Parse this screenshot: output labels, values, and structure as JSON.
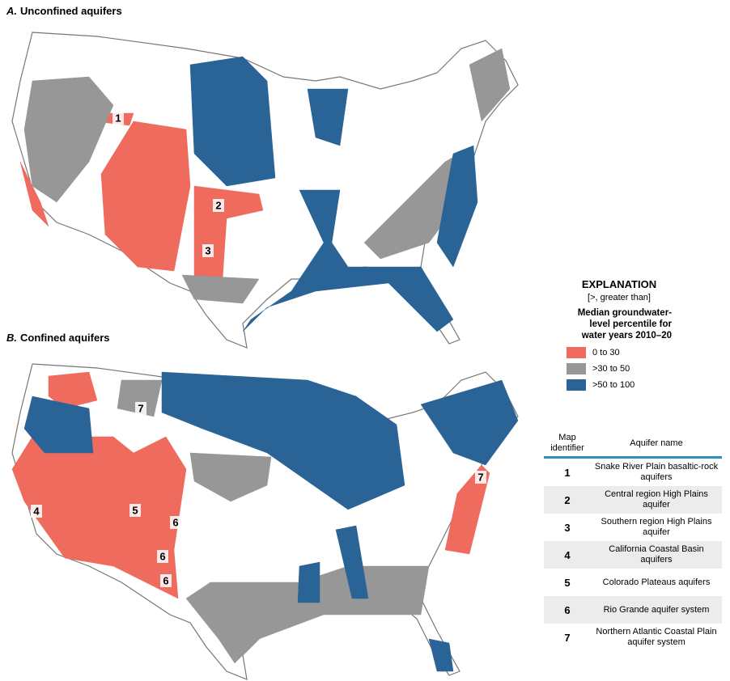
{
  "panels": [
    {
      "letter": "A.",
      "title": "Unconfined aquifers",
      "labels": [
        "1",
        "2",
        "3"
      ]
    },
    {
      "letter": "B.",
      "title": "Confined aquifers",
      "labels": [
        "4",
        "5",
        "6",
        "6",
        "6",
        "7",
        "7"
      ]
    }
  ],
  "explanation": {
    "title": "EXPLANATION",
    "note": "[>, greater than]",
    "heading": "Median groundwater-level percentile for water years 2010–20",
    "items": [
      {
        "label": "0 to 30",
        "color": "#ef6b5e"
      },
      {
        "label": ">30 to 50",
        "color": "#979797"
      },
      {
        "label": ">50 to 100",
        "color": "#2a6496"
      }
    ]
  },
  "table": {
    "columns": [
      "Map identifier",
      "Aquifer name"
    ],
    "rows": [
      [
        "1",
        "Snake River Plain basaltic-rock aquifers"
      ],
      [
        "2",
        "Central region High Plains aquifer"
      ],
      [
        "3",
        "Southern region High Plains aquifer"
      ],
      [
        "4",
        "California Coastal Basin aquifers"
      ],
      [
        "5",
        "Colorado Plateaus aquifers"
      ],
      [
        "6",
        "Rio Grande aquifer system"
      ],
      [
        "7",
        "Northern Atlantic Coastal Plain aquifer system"
      ]
    ]
  }
}
